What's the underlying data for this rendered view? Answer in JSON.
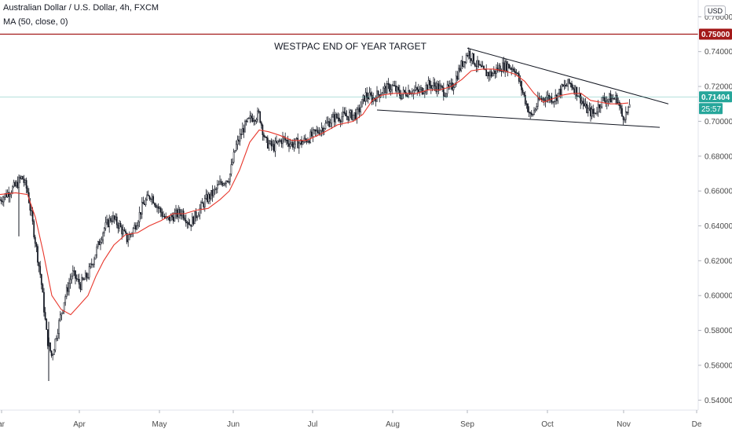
{
  "legend": {
    "symbol_line": "Australian Dollar / U.S. Dollar, 4h, FXCM",
    "indicator_line": "MA (50, close, 0)"
  },
  "currency": "USD",
  "annotation_text": "WESTPAC END OF YEAR TARGET",
  "chart_data": {
    "type": "candlestick",
    "title": "Australian Dollar / U.S. Dollar, 4h, FXCM",
    "indicator": "MA (50, close, 0)",
    "y_ticks": [
      "0.54000",
      "0.56000",
      "0.58000",
      "0.60000",
      "0.62000",
      "0.64000",
      "0.66000",
      "0.68000",
      "0.70000",
      "0.72000",
      "0.74000",
      "0.76000"
    ],
    "ylim": [
      0.537,
      0.766
    ],
    "x_labels": [
      "ar",
      "Apr",
      "May",
      "Jun",
      "Jul",
      "Aug",
      "Sep",
      "Oct",
      "Nov",
      "De"
    ],
    "price_path": [
      [
        0,
        0.655
      ],
      [
        20,
        0.663
      ],
      [
        28,
        0.668
      ],
      [
        35,
        0.66
      ],
      [
        42,
        0.64
      ],
      [
        52,
        0.61
      ],
      [
        60,
        0.575
      ],
      [
        66,
        0.565
      ],
      [
        73,
        0.58
      ],
      [
        82,
        0.598
      ],
      [
        92,
        0.613
      ],
      [
        102,
        0.606
      ],
      [
        112,
        0.612
      ],
      [
        122,
        0.625
      ],
      [
        132,
        0.638
      ],
      [
        142,
        0.645
      ],
      [
        152,
        0.64
      ],
      [
        162,
        0.632
      ],
      [
        172,
        0.64
      ],
      [
        182,
        0.652
      ],
      [
        192,
        0.658
      ],
      [
        202,
        0.65
      ],
      [
        212,
        0.643
      ],
      [
        222,
        0.646
      ],
      [
        232,
        0.648
      ],
      [
        242,
        0.641
      ],
      [
        252,
        0.648
      ],
      [
        262,
        0.655
      ],
      [
        272,
        0.659
      ],
      [
        282,
        0.665
      ],
      [
        292,
        0.668
      ],
      [
        300,
        0.685
      ],
      [
        310,
        0.696
      ],
      [
        320,
        0.702
      ],
      [
        330,
        0.704
      ],
      [
        338,
        0.688
      ],
      [
        348,
        0.685
      ],
      [
        360,
        0.69
      ],
      [
        372,
        0.687
      ],
      [
        385,
        0.688
      ],
      [
        398,
        0.692
      ],
      [
        412,
        0.697
      ],
      [
        425,
        0.702
      ],
      [
        440,
        0.703
      ],
      [
        455,
        0.704
      ],
      [
        465,
        0.715
      ],
      [
        475,
        0.713
      ],
      [
        488,
        0.718
      ],
      [
        500,
        0.72
      ],
      [
        510,
        0.715
      ],
      [
        522,
        0.718
      ],
      [
        534,
        0.717
      ],
      [
        546,
        0.721
      ],
      [
        556,
        0.72
      ],
      [
        566,
        0.717
      ],
      [
        576,
        0.72
      ],
      [
        586,
        0.731
      ],
      [
        596,
        0.74
      ],
      [
        606,
        0.733
      ],
      [
        616,
        0.728
      ],
      [
        626,
        0.727
      ],
      [
        636,
        0.731
      ],
      [
        646,
        0.732
      ],
      [
        656,
        0.73
      ],
      [
        666,
        0.716
      ],
      [
        676,
        0.702
      ],
      [
        686,
        0.712
      ],
      [
        696,
        0.714
      ],
      [
        706,
        0.713
      ],
      [
        716,
        0.719
      ],
      [
        726,
        0.722
      ],
      [
        736,
        0.716
      ],
      [
        746,
        0.707
      ],
      [
        756,
        0.704
      ],
      [
        766,
        0.712
      ],
      [
        776,
        0.713
      ],
      [
        786,
        0.713
      ],
      [
        792,
        0.703
      ],
      [
        800,
        0.705
      ],
      [
        803,
        0.7145
      ]
    ],
    "moving_average_path": [
      [
        0,
        0.658
      ],
      [
        20,
        0.659
      ],
      [
        35,
        0.658
      ],
      [
        45,
        0.645
      ],
      [
        55,
        0.625
      ],
      [
        66,
        0.6
      ],
      [
        78,
        0.592
      ],
      [
        90,
        0.589
      ],
      [
        100,
        0.594
      ],
      [
        112,
        0.6
      ],
      [
        122,
        0.611
      ],
      [
        132,
        0.62
      ],
      [
        145,
        0.629
      ],
      [
        160,
        0.635
      ],
      [
        175,
        0.636
      ],
      [
        190,
        0.64
      ],
      [
        205,
        0.643
      ],
      [
        220,
        0.647
      ],
      [
        235,
        0.647
      ],
      [
        250,
        0.649
      ],
      [
        265,
        0.65
      ],
      [
        280,
        0.655
      ],
      [
        292,
        0.66
      ],
      [
        305,
        0.672
      ],
      [
        318,
        0.688
      ],
      [
        330,
        0.695
      ],
      [
        342,
        0.694
      ],
      [
        356,
        0.692
      ],
      [
        372,
        0.689
      ],
      [
        390,
        0.689
      ],
      [
        410,
        0.693
      ],
      [
        430,
        0.698
      ],
      [
        450,
        0.7
      ],
      [
        462,
        0.704
      ],
      [
        474,
        0.712
      ],
      [
        486,
        0.715
      ],
      [
        500,
        0.716
      ],
      [
        515,
        0.716
      ],
      [
        530,
        0.716
      ],
      [
        545,
        0.718
      ],
      [
        560,
        0.718
      ],
      [
        575,
        0.72
      ],
      [
        588,
        0.724
      ],
      [
        600,
        0.729
      ],
      [
        614,
        0.73
      ],
      [
        628,
        0.73
      ],
      [
        642,
        0.729
      ],
      [
        656,
        0.727
      ],
      [
        668,
        0.723
      ],
      [
        680,
        0.716
      ],
      [
        692,
        0.711
      ],
      [
        704,
        0.713
      ],
      [
        716,
        0.715
      ],
      [
        728,
        0.716
      ],
      [
        740,
        0.716
      ],
      [
        752,
        0.712
      ],
      [
        764,
        0.711
      ],
      [
        776,
        0.71
      ],
      [
        788,
        0.71
      ],
      [
        800,
        0.7105
      ]
    ],
    "horizontal_levels": [
      {
        "value": 0.75,
        "label": "0.75000",
        "color": "#a31919"
      },
      {
        "value": 0.71404,
        "label": "0.71404",
        "color": "#26a69a"
      }
    ],
    "current_price": "0.71404",
    "countdown": "25:57",
    "trendlines": [
      {
        "from": [
          595,
          0.742
        ],
        "to": [
          851,
          0.71
        ]
      },
      {
        "from": [
          480,
          0.7065
        ],
        "to": [
          840,
          0.6965
        ]
      }
    ],
    "annotation": "WESTPAC END OF YEAR TARGET",
    "colors": {
      "candles": "#131722",
      "ma": "#e8372c",
      "target": "#a31919",
      "last_price": "#26a69a"
    }
  }
}
